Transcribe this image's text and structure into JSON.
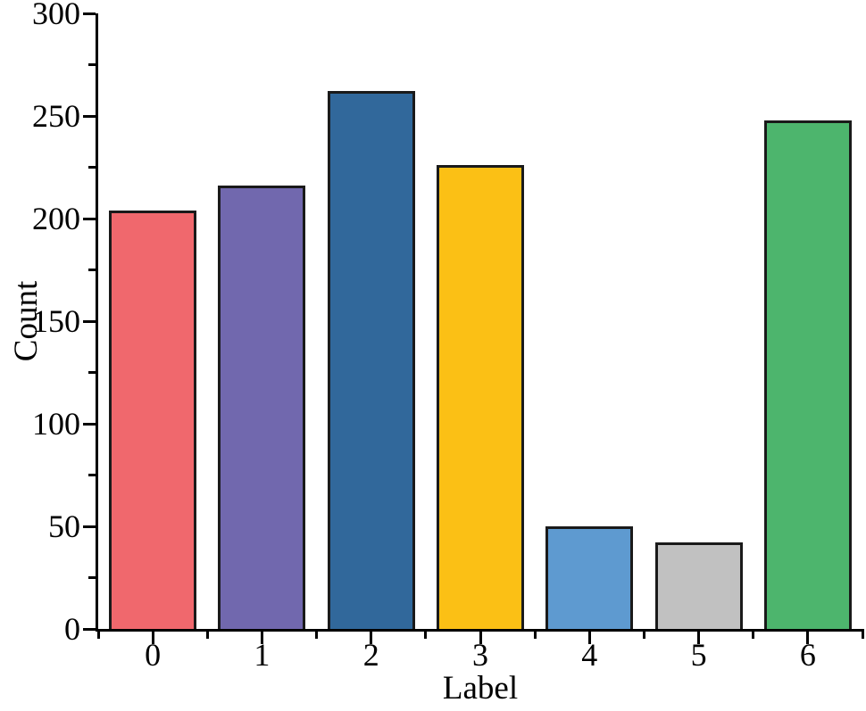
{
  "chart_data": {
    "type": "bar",
    "title": "",
    "xlabel": "Label",
    "ylabel": "Count",
    "categories": [
      "0",
      "1",
      "2",
      "3",
      "4",
      "5",
      "6"
    ],
    "values": [
      204,
      216,
      262,
      226,
      50,
      42,
      248
    ],
    "bar_colors": [
      "#F0686D",
      "#7168AE",
      "#31689B",
      "#FBC015",
      "#5E9AD0",
      "#C1C1C1",
      "#4DB56D"
    ],
    "bar_edge_color": "#1A1A1A",
    "axis_color": "#000000",
    "ylim": [
      0,
      300
    ],
    "y_major_ticks": [
      0,
      50,
      100,
      150,
      200,
      250,
      300
    ],
    "y_tick_labels": [
      "0",
      "50",
      "100",
      "150",
      "200",
      "250",
      "300"
    ],
    "y_minor_tick_step": 25,
    "x_minor_ticks": "category-boundaries",
    "tick_direction": "out",
    "grid": false,
    "legend": null,
    "background": "#ffffff"
  }
}
